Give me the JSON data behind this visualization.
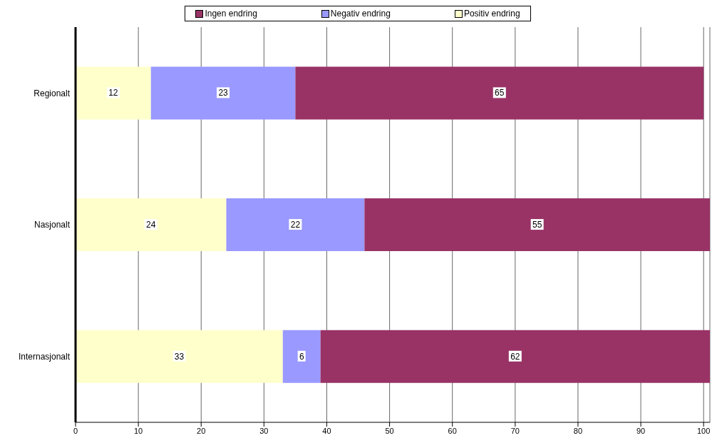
{
  "chart_data": {
    "type": "bar",
    "orientation": "horizontal",
    "stacked": true,
    "categories": [
      "Regionalt",
      "Nasjonalt",
      "Internasjonalt"
    ],
    "series": [
      {
        "name": "Positiv endring",
        "color": "#ffffcc",
        "values": [
          12,
          24,
          33
        ]
      },
      {
        "name": "Negativ endring",
        "color": "#9999ff",
        "values": [
          23,
          22,
          6
        ]
      },
      {
        "name": "Ingen endring",
        "color": "#993366",
        "values": [
          65,
          55,
          62
        ]
      }
    ],
    "xlim": [
      0,
      101
    ],
    "xticks": [
      0,
      10,
      20,
      30,
      40,
      50,
      60,
      70,
      80,
      90,
      100
    ],
    "grid": "x",
    "legend": "top",
    "data_labels": true
  }
}
